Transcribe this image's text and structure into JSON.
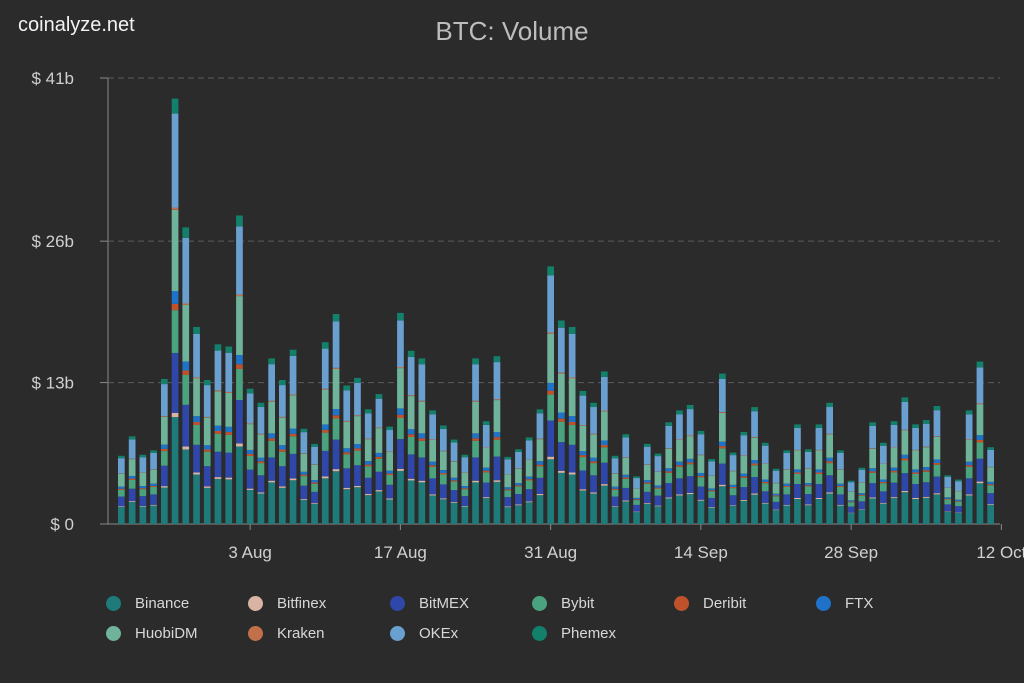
{
  "brand": "coinalyze.net",
  "chart_data": {
    "type": "bar",
    "stacked": true,
    "title": "BTC: Volume",
    "ylim": [
      0,
      41
    ],
    "yticks": [
      "$ 0",
      "$ 13b",
      "$ 26b",
      "$ 41b"
    ],
    "ytick_values": [
      0,
      13,
      26,
      41
    ],
    "xticks": [
      {
        "label": "3 Aug",
        "index": 12
      },
      {
        "label": "17 Aug",
        "index": 26
      },
      {
        "label": "31 Aug",
        "index": 40
      },
      {
        "label": "14 Sep",
        "index": 54
      },
      {
        "label": "28 Sep",
        "index": 68
      },
      {
        "label": "12 Oct",
        "index": 82
      }
    ],
    "grid": true,
    "legend_position": "bottom",
    "totals": [
      6.3,
      8.1,
      6.4,
      6.8,
      13.4,
      39.3,
      27.4,
      18.2,
      13.3,
      16.6,
      16.4,
      28.5,
      12.5,
      11.2,
      15.3,
      13.3,
      16.1,
      8.8,
      7.4,
      16.8,
      19.4,
      12.8,
      13.5,
      10.6,
      12.0,
      9.0,
      19.5,
      16.0,
      15.3,
      10.5,
      9.1,
      7.8,
      6.4,
      15.3,
      9.5,
      15.5,
      6.2,
      6.9,
      8.0,
      10.6,
      23.8,
      18.8,
      18.2,
      12.3,
      11.2,
      14.1,
      6.3,
      8.3,
      4.4,
      7.4,
      6.5,
      9.4,
      10.5,
      11.0,
      8.6,
      6.0,
      13.9,
      6.6,
      8.5,
      10.8,
      7.5,
      5.1,
      6.8,
      9.2,
      6.9,
      9.2,
      11.2,
      6.8,
      4.0,
      5.2,
      9.4,
      7.5,
      9.5,
      11.7,
      9.2,
      9.6,
      10.9,
      4.5,
      4.1,
      10.5,
      15.0,
      7.1
    ],
    "series": [
      {
        "name": "Binance",
        "color": "#1f7a7a",
        "share": 0.25
      },
      {
        "name": "Bitfinex",
        "color": "#d9b3a3",
        "share": 0.01
      },
      {
        "name": "BitMEX",
        "color": "#2e47a8",
        "share": 0.14
      },
      {
        "name": "Bybit",
        "color": "#4aa37e",
        "share": 0.1
      },
      {
        "name": "Deribit",
        "color": "#c0522b",
        "share": 0.015
      },
      {
        "name": "FTX",
        "color": "#1e73c8",
        "share": 0.03
      },
      {
        "name": "HuobiDM",
        "color": "#6fb39a",
        "share": 0.19
      },
      {
        "name": "Kraken",
        "color": "#c2704a",
        "share": 0.005
      },
      {
        "name": "OKEx",
        "color": "#6aa0d0",
        "share": 0.22
      },
      {
        "name": "Phemex",
        "color": "#12806a",
        "share": 0.035
      }
    ]
  }
}
